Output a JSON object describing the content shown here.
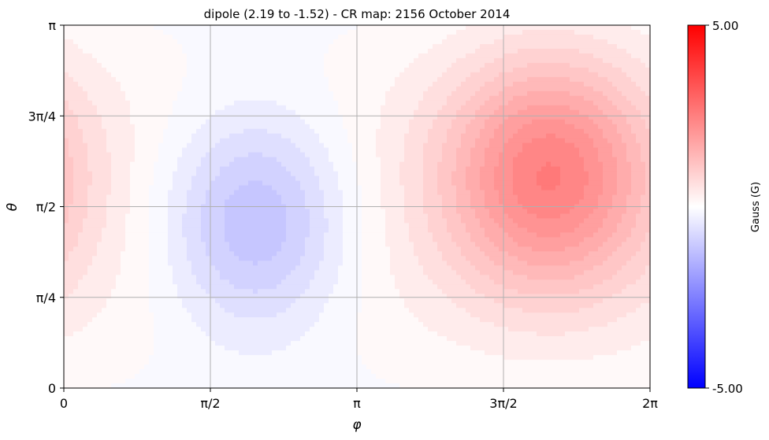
{
  "chart_data": {
    "type": "heatmap",
    "title": "dipole (2.19 to -1.52) - CR map: 2156 October 2014",
    "xlabel": "φ",
    "ylabel": "θ",
    "x_range": [
      0,
      6.283185
    ],
    "y_range": [
      0,
      3.141593
    ],
    "x_ticks": [
      "0",
      "π/2",
      "π",
      "3π/2",
      "2π"
    ],
    "x_tick_values": [
      0,
      1.570796,
      3.141593,
      4.712389,
      6.283185
    ],
    "y_ticks": [
      "0",
      "π/4",
      "π/2",
      "3π/4",
      "π"
    ],
    "y_tick_values": [
      0,
      0.785398,
      1.570796,
      2.356194,
      3.141593
    ],
    "grid": true,
    "field_max": 2.19,
    "field_min": -1.52,
    "min_location": {
      "phi": 2.05,
      "theta": 1.45
    },
    "max_location": {
      "phi": 5.2,
      "theta": 1.85
    },
    "colorbar": {
      "label": "Gauss (G)",
      "max_label": "5.00",
      "min_label": "-5.00",
      "vmin": -5,
      "vmax": 5,
      "colormap": "bwr",
      "color_min": "#0000ff",
      "color_mid": "#ffffff",
      "color_max": "#ff0000",
      "levels": 40
    }
  }
}
